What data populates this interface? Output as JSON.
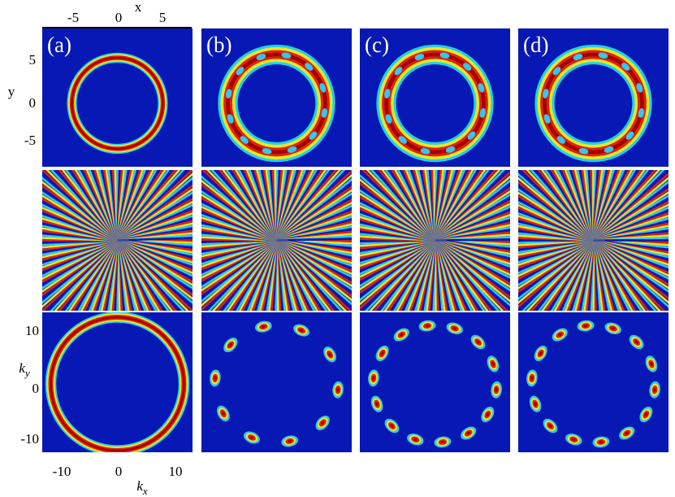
{
  "panels": [
    {
      "label": "(a)"
    },
    {
      "label": "(b)"
    },
    {
      "label": "(c)"
    },
    {
      "label": "(d)"
    }
  ],
  "top_axis": {
    "label": "x",
    "ticks": [
      -5,
      0,
      5
    ]
  },
  "left_axis": {
    "label": "y",
    "ticks": [
      5,
      0,
      -5
    ]
  },
  "bottom_axis": {
    "label": "k",
    "subscript": "x",
    "ticks": [
      -10,
      0,
      10
    ]
  },
  "lower_left_axis": {
    "label": "k",
    "subscript": "y",
    "ticks": [
      10,
      0,
      -10
    ]
  }
}
